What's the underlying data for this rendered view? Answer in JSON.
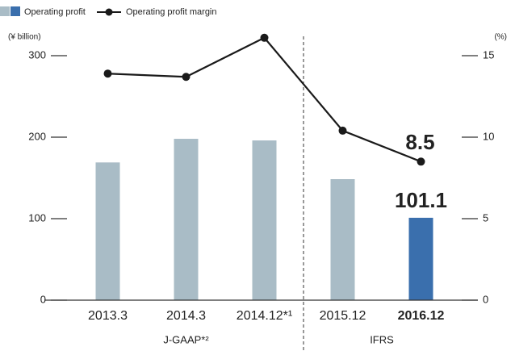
{
  "chart_data": {
    "type": "bar_line",
    "categories": [
      "2013.3",
      "2014.3",
      "2014.12*¹",
      "2015.12",
      "2016.12"
    ],
    "groups": [
      {
        "name": "J-GAAP*²",
        "categories": 3
      },
      {
        "name": "IFRS",
        "categories": 2
      }
    ],
    "highlight_index": 4,
    "highlight_color": "#3a6fad",
    "series": [
      {
        "name": "Operating profit",
        "type": "bar",
        "color": "#a9bcc6",
        "values": [
          169,
          198,
          196,
          148.5,
          101.1
        ],
        "value_labels": [
          null,
          null,
          null,
          null,
          "101.1"
        ]
      },
      {
        "name": "Operating profit margin",
        "type": "line",
        "axis": "y2",
        "color": "#1a1a1a",
        "values": [
          13.9,
          13.7,
          16.1,
          10.4,
          8.5
        ],
        "value_labels": [
          null,
          null,
          null,
          null,
          "8.5"
        ]
      }
    ],
    "ylabel": "(¥ billion)",
    "y2label": "(%)",
    "ylim": [
      0,
      300
    ],
    "yticks": [
      0,
      100,
      200,
      300
    ],
    "y2lim": [
      0,
      15
    ],
    "y2ticks": [
      0,
      5,
      10,
      15
    ]
  }
}
